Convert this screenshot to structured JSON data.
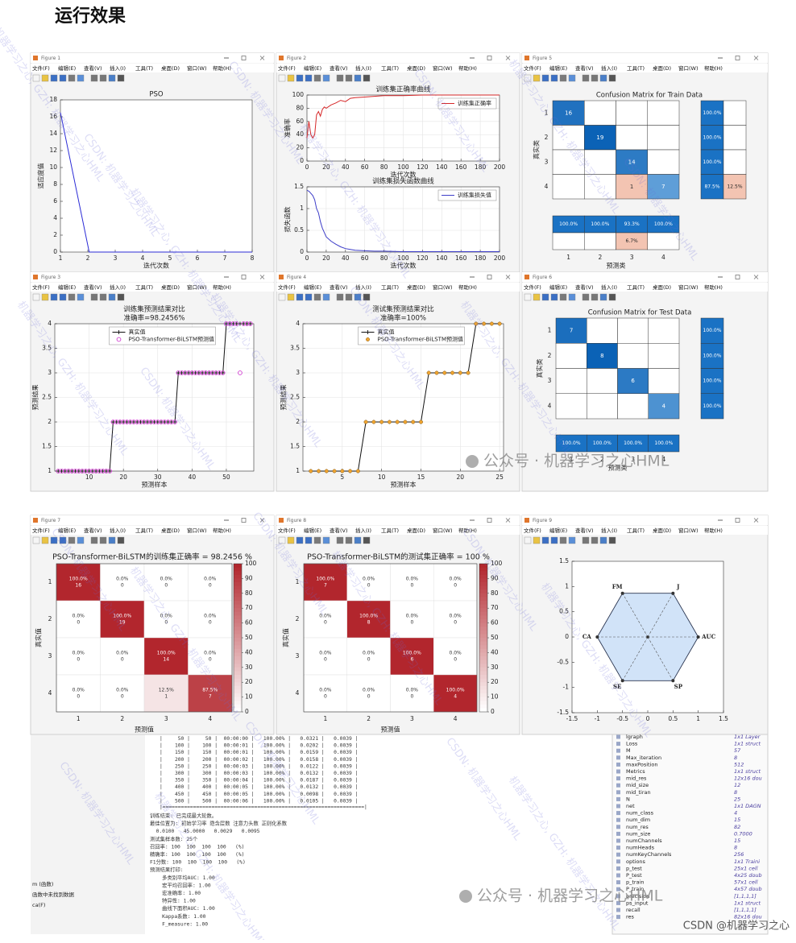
{
  "heading": "运行效果",
  "menu": [
    "文件(F)",
    "编辑(E)",
    "查看(V)",
    "插入(I)",
    "工具(T)",
    "桌面(D)",
    "窗口(W)",
    "帮助(H)"
  ],
  "figures": [
    {
      "title": "Figure 1",
      "plot": "lines",
      "axes": [
        {
          "title": "PSO",
          "xlabel": "迭代次数",
          "ylabel": "适应度值",
          "xlim": [
            1,
            8
          ],
          "ylim": [
            0,
            18
          ],
          "xticks": [
            1,
            2,
            3,
            4,
            5,
            6,
            7,
            8
          ],
          "yticks": [
            0,
            2,
            4,
            6,
            8,
            10,
            12,
            14,
            16,
            18
          ],
          "grid": false,
          "series": [
            {
              "color": "#2b2bd6",
              "x": [
                1,
                2.05,
                3,
                4,
                5,
                6,
                7,
                8
              ],
              "values": [
                16.5,
                0,
                0,
                0,
                0,
                0,
                0,
                0
              ]
            }
          ]
        }
      ]
    },
    {
      "title": "Figure 2",
      "plot": "lines",
      "axes": [
        {
          "title": "训练集正确率曲线",
          "xlabel": "迭代次数",
          "ylabel": "准确率",
          "xlim": [
            0,
            200
          ],
          "ylim": [
            0,
            100
          ],
          "xticks": [
            0,
            20,
            40,
            60,
            80,
            100,
            120,
            140,
            160,
            180,
            200
          ],
          "yticks": [
            0,
            20,
            40,
            60,
            80,
            100
          ],
          "grid": true,
          "legend_loc": "upper right",
          "series": [
            {
              "name": "训练集正确率",
              "color": "#d62728",
              "x": [
                0,
                2,
                4,
                6,
                8,
                10,
                12,
                14,
                16,
                18,
                20,
                25,
                30,
                35,
                40,
                45,
                50,
                60,
                70,
                80,
                100,
                120,
                140,
                160,
                180,
                200
              ],
              "values": [
                35,
                60,
                40,
                35,
                40,
                70,
                75,
                68,
                78,
                82,
                80,
                85,
                88,
                92,
                90,
                95,
                96,
                97,
                98,
                99,
                99,
                100,
                100,
                100,
                100,
                100
              ]
            }
          ]
        },
        {
          "title": "训练集损失函数曲线",
          "xlabel": "迭代次数",
          "ylabel": "损失函数",
          "xlim": [
            0,
            200
          ],
          "ylim": [
            0,
            1.5
          ],
          "xticks": [
            0,
            20,
            40,
            60,
            80,
            100,
            120,
            140,
            160,
            180,
            200
          ],
          "yticks": [
            0,
            0.5,
            1,
            1.5
          ],
          "grid": true,
          "legend_loc": "upper right",
          "series": [
            {
              "name": "训练集损失值",
              "color": "#3d3dc8",
              "x": [
                0,
                2,
                4,
                6,
                8,
                10,
                12,
                14,
                16,
                18,
                20,
                25,
                30,
                35,
                40,
                45,
                50,
                60,
                70,
                80,
                100,
                120,
                140,
                160,
                180,
                200
              ],
              "values": [
                1.42,
                1.4,
                1.35,
                1.3,
                1.2,
                1.0,
                0.9,
                0.7,
                0.55,
                0.45,
                0.35,
                0.25,
                0.18,
                0.12,
                0.08,
                0.06,
                0.04,
                0.03,
                0.02,
                0.02,
                0.01,
                0.01,
                0.01,
                0.01,
                0.01,
                0.01
              ]
            }
          ]
        }
      ]
    },
    {
      "title": "Figure 5",
      "plot": "confusion",
      "chart_title": "Confusion Matrix for Train Data",
      "xlabel": "预测类",
      "ylabel": "真实类",
      "classes": [
        1,
        2,
        3,
        4
      ],
      "matrix": [
        [
          16,
          0,
          0,
          0
        ],
        [
          0,
          19,
          0,
          0
        ],
        [
          0,
          0,
          14,
          0
        ],
        [
          0,
          0,
          1,
          7
        ]
      ],
      "row_summary": {
        "correct": [
          "100.0%",
          "100.0%",
          "100.0%",
          "87.5%"
        ],
        "error": [
          null,
          null,
          null,
          "12.5%"
        ]
      },
      "col_summary": {
        "correct": [
          "100.0%",
          "100.0%",
          "93.3%",
          "100.0%"
        ],
        "error": [
          null,
          null,
          "6.7%",
          null
        ]
      }
    },
    {
      "title": "Figure 3",
      "plot": "lines",
      "axes": [
        {
          "title": "训练集预测结果对比",
          "subtitle": "准确率=98.2456%",
          "xlabel": "预测样本",
          "ylabel": "预测结果",
          "xlim": [
            0,
            58
          ],
          "ylim": [
            1,
            4
          ],
          "xticks": [
            10,
            20,
            30,
            40,
            50
          ],
          "yticks": [
            1,
            1.5,
            2,
            2.5,
            3,
            3.5,
            4
          ],
          "grid": true,
          "legend_loc": "upper center",
          "series": [
            {
              "name": "真实值",
              "color": "#111111",
              "marker": "plus",
              "values": [
                1,
                1,
                1,
                1,
                1,
                1,
                1,
                1,
                1,
                1,
                1,
                1,
                1,
                1,
                1,
                1,
                2,
                2,
                2,
                2,
                2,
                2,
                2,
                2,
                2,
                2,
                2,
                2,
                2,
                2,
                2,
                2,
                2,
                2,
                2,
                3,
                3,
                3,
                3,
                3,
                3,
                3,
                3,
                3,
                3,
                3,
                3,
                3,
                3,
                4,
                4,
                4,
                4,
                4,
                4,
                4,
                4
              ]
            },
            {
              "name": "PSO-Transformer-BiLSTM预测值",
              "color": "#d03cd0",
              "marker": "circle",
              "line": false,
              "values": [
                1,
                1,
                1,
                1,
                1,
                1,
                1,
                1,
                1,
                1,
                1,
                1,
                1,
                1,
                1,
                1,
                2,
                2,
                2,
                2,
                2,
                2,
                2,
                2,
                2,
                2,
                2,
                2,
                2,
                2,
                2,
                2,
                2,
                2,
                2,
                3,
                3,
                3,
                3,
                3,
                3,
                3,
                3,
                3,
                3,
                3,
                3,
                3,
                3,
                4,
                4,
                4,
                4,
                3,
                4,
                4,
                4
              ]
            }
          ]
        }
      ]
    },
    {
      "title": "Figure 4",
      "plot": "lines",
      "axes": [
        {
          "title": "测试集预测结果对比",
          "subtitle": "准确率=100%",
          "xlabel": "预测样本",
          "ylabel": "预测结果",
          "xlim": [
            0,
            25.5
          ],
          "ylim": [
            1,
            4
          ],
          "xticks": [
            5,
            10,
            15,
            20,
            25
          ],
          "yticks": [
            1,
            1.5,
            2,
            2.5,
            3,
            3.5,
            4
          ],
          "grid": true,
          "legend_loc": "upper center",
          "series": [
            {
              "name": "真实值",
              "color": "#111111",
              "marker": "plus",
              "values": [
                1,
                1,
                1,
                1,
                1,
                1,
                1,
                2,
                2,
                2,
                2,
                2,
                2,
                2,
                2,
                3,
                3,
                3,
                3,
                3,
                3,
                4,
                4,
                4,
                4
              ]
            },
            {
              "name": "PSO-Transformer-BiLSTM预测值",
              "color": "#f0a530",
              "marker": "disc",
              "line": false,
              "values": [
                1,
                1,
                1,
                1,
                1,
                1,
                1,
                2,
                2,
                2,
                2,
                2,
                2,
                2,
                2,
                3,
                3,
                3,
                3,
                3,
                3,
                4,
                4,
                4,
                4
              ]
            }
          ]
        }
      ]
    },
    {
      "title": "Figure 6",
      "plot": "confusion",
      "chart_title": "Confusion Matrix for Test Data",
      "xlabel": "预测类",
      "ylabel": "真实类",
      "classes": [
        1,
        2,
        3,
        4
      ],
      "matrix": [
        [
          7,
          0,
          0,
          0
        ],
        [
          0,
          8,
          0,
          0
        ],
        [
          0,
          0,
          6,
          0
        ],
        [
          0,
          0,
          0,
          4
        ]
      ],
      "row_summary": {
        "correct": [
          "100.0%",
          "100.0%",
          "100.0%",
          "100.0%"
        ]
      },
      "col_summary": {
        "correct": [
          "100.0%",
          "100.0%",
          "100.0%",
          "100.0%"
        ]
      }
    },
    {
      "title": "Figure 7",
      "plot": "heatmap",
      "chart_title": "PSO-Transformer-BiLSTM的训练集正确率 = 98.2456 %",
      "xlabel": "预测值",
      "ylabel": "真实值",
      "classes": [
        1,
        2,
        3,
        4
      ],
      "percent": [
        [
          100,
          0,
          0,
          0
        ],
        [
          0,
          100,
          0,
          0
        ],
        [
          0,
          0,
          100,
          0
        ],
        [
          0,
          0,
          12.5,
          87.5
        ]
      ],
      "percent_labels": [
        [
          "100.0%",
          "0.0%",
          "0.0%",
          "0.0%"
        ],
        [
          "0.0%",
          "100.0%",
          "0.0%",
          "0.0%"
        ],
        [
          "0.0%",
          "0.0%",
          "100.0%",
          "0.0%"
        ],
        [
          "0.0%",
          "0.0%",
          "12.5%",
          "87.5%"
        ]
      ],
      "counts": [
        [
          16,
          0,
          0,
          0
        ],
        [
          0,
          19,
          0,
          0
        ],
        [
          0,
          0,
          14,
          0
        ],
        [
          0,
          0,
          1,
          7
        ]
      ],
      "cbar_lim": [
        0,
        100
      ],
      "cbar_ticks": [
        0,
        10,
        20,
        30,
        40,
        50,
        60,
        70,
        80,
        90,
        100
      ]
    },
    {
      "title": "Figure 8",
      "plot": "heatmap",
      "chart_title": "PSO-Transformer-BiLSTM的测试集正确率 = 100 %",
      "xlabel": "预测值",
      "ylabel": "真实值",
      "classes": [
        1,
        2,
        3,
        4
      ],
      "percent": [
        [
          100,
          0,
          0,
          0
        ],
        [
          0,
          100,
          0,
          0
        ],
        [
          0,
          0,
          100,
          0
        ],
        [
          0,
          0,
          0,
          100
        ]
      ],
      "percent_labels": [
        [
          "100.0%",
          "0.0%",
          "0.0%",
          "0.0%"
        ],
        [
          "0.0%",
          "100.0%",
          "0.0%",
          "0.0%"
        ],
        [
          "0.0%",
          "0.0%",
          "100.0%",
          "0.0%"
        ],
        [
          "0.0%",
          "0.0%",
          "0.0%",
          "100.0%"
        ]
      ],
      "counts": [
        [
          7,
          0,
          0,
          0
        ],
        [
          0,
          8,
          0,
          0
        ],
        [
          0,
          0,
          6,
          0
        ],
        [
          0,
          0,
          0,
          4
        ]
      ],
      "cbar_lim": [
        0,
        100
      ],
      "cbar_ticks": [
        0,
        10,
        20,
        30,
        40,
        50,
        60,
        70,
        80,
        90,
        100
      ]
    },
    {
      "title": "Figure 9",
      "plot": "radar",
      "axes": [
        {
          "xlim": [
            -1.5,
            1.5
          ],
          "ylim": [
            -1.5,
            1.5
          ],
          "xticks": [
            -1.5,
            -1,
            -0.5,
            0,
            0.5,
            1,
            1.5
          ],
          "yticks": [
            -1.5,
            -1,
            -0.5,
            0,
            0.5,
            1,
            1.5
          ],
          "grid": false,
          "labels": [
            "AUC",
            "J",
            "FM",
            "CA",
            "SE",
            "SP"
          ],
          "values": [
            1,
            1,
            1,
            1,
            1,
            1
          ],
          "color": "#4a78c8"
        }
      ]
    }
  ],
  "command_window": {
    "table_rows": [
      "|     50 |     50 |  00:00:00 |   100.00% |   0.0321 |   0.0039 |",
      "|    100 |    100 |  00:00:01 |   100.00% |   0.0202 |   0.0039 |",
      "|    150 |    150 |  00:00:01 |   100.00% |   0.0159 |   0.0039 |",
      "|    200 |    200 |  00:00:02 |   100.00% |   0.0158 |   0.0039 |",
      "|    250 |    250 |  00:00:03 |   100.00% |   0.0122 |   0.0039 |",
      "|    300 |    300 |  00:00:03 |   100.00% |   0.0132 |   0.0039 |",
      "|    350 |    350 |  00:00:04 |   100.00% |   0.0187 |   0.0039 |",
      "|    400 |    400 |  00:00:05 |   100.00% |   0.0132 |   0.0039 |",
      "|    450 |    450 |  00:00:05 |   100.00% |   0.0098 |   0.0039 |",
      "|    500 |    500 |  00:00:06 |   100.00% |   0.0105 |   0.0039 |"
    ],
    "separator": "|==================================================================|",
    "log_lines": [
      "训练结束: 已完成最大轮数。",
      "最佳位置为: 初始学习率 隐含层数 注意力头数 正则化系数",
      "  0.0100   45.0000   0.0029   0.0095",
      "测试集样本数: 25个",
      "召回率: 100  100  100  100   (%)",
      "精确率: 100  100  100  100   (%)",
      "F1分数: 100  100  100  100   (%)",
      "预测结果打印:",
      "    多类别平均AUC: 1.00",
      "    宏平均召回率: 1.00",
      "    宏准确率: 1.00",
      "    特异性: 1.00",
      "    曲线下面积AUC: 1.00",
      "    Kappa系数: 1.00",
      "    F_measure: 1.00"
    ],
    "side_lines": [
      "m (函数)",
      "函数中未找到数据",
      "ca(F)"
    ]
  },
  "workspace": [
    [
      "lgraph",
      "1x1 Layer"
    ],
    [
      "Loss",
      "1x1 struct"
    ],
    [
      "M",
      "57"
    ],
    [
      "Max_iteration",
      "8"
    ],
    [
      "maxPosition",
      "512"
    ],
    [
      "Metrics",
      "1x1 struct"
    ],
    [
      "mid_res",
      "12x16 dou"
    ],
    [
      "mid_size",
      "12"
    ],
    [
      "mid_tiran",
      "8"
    ],
    [
      "N",
      "25"
    ],
    [
      "net",
      "1x1 DAGN"
    ],
    [
      "num_class",
      "4"
    ],
    [
      "num_dim",
      "15"
    ],
    [
      "num_res",
      "82"
    ],
    [
      "num_size",
      "0.7000"
    ],
    [
      "numChannels",
      "15"
    ],
    [
      "numHeads",
      "8"
    ],
    [
      "numKeyChannels",
      "256"
    ],
    [
      "options",
      "1x1 Traini"
    ],
    [
      "p_test",
      "25x1 cell"
    ],
    [
      "P_test",
      "4x25 doub"
    ],
    [
      "p_train",
      "57x1 cell"
    ],
    [
      "P_train",
      "4x57 doub"
    ],
    [
      "precision",
      "[1,1,1,1]"
    ],
    [
      "ps_input",
      "1x1 struct"
    ],
    [
      "recall",
      "[1,1,1,1]"
    ],
    [
      "res",
      "82x16 dou"
    ]
  ],
  "watermarks": [
    "机器学习之心, GZH: 机器学习之心HML",
    "CSDN: 机器学习之心HML"
  ],
  "wechat_mark": "公众号 · 机器学习之心HML",
  "footer": "CSDN @机器学习之心"
}
